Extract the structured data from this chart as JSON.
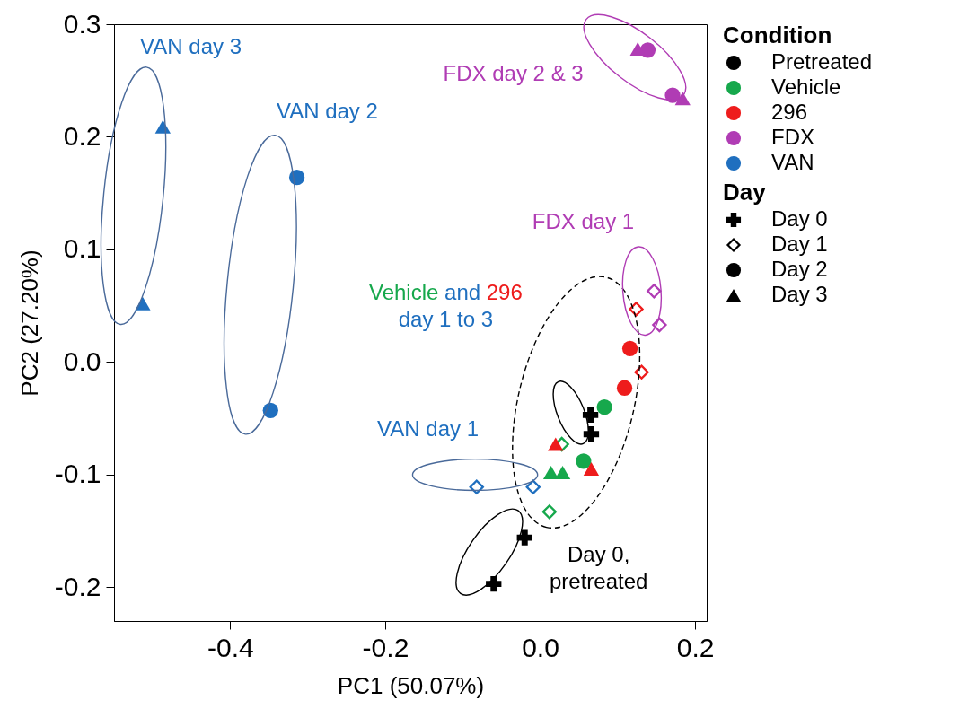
{
  "chart_data": {
    "type": "scatter",
    "xlabel": "PC1 (50.07%)",
    "ylabel": "PC2 (27.20%)",
    "xlim": [
      -0.55,
      0.215
    ],
    "ylim": [
      -0.23,
      0.3
    ],
    "xticks": [
      -0.4,
      -0.2,
      {
        "value": 0,
        "label": "0.0"
      },
      0.2
    ],
    "yticks": [
      -0.2,
      -0.1,
      {
        "value": 0,
        "label": "0.0"
      },
      0.1,
      0.2,
      0.3
    ],
    "grid": false,
    "legend": "right",
    "legend_title": "Condition",
    "series": [
      {
        "name": "Pretreated",
        "color": "#000000",
        "marker": "cross",
        "x": [
          -0.02,
          -0.06,
          0.065,
          0.066
        ],
        "values": [
          -0.156,
          -0.197,
          -0.047,
          -0.064
        ]
      },
      {
        "color": "#16a84c",
        "marker": "diamond",
        "x": [
          0.012,
          0.028
        ],
        "values": [
          -0.133,
          -0.073
        ]
      },
      {
        "name": "Vehicle",
        "color": "#16a84c",
        "marker": "circle",
        "x": [
          0.056,
          0.083
        ],
        "values": [
          -0.088,
          -0.04
        ]
      },
      {
        "color": "#16a84c",
        "marker": "triangle",
        "x": [
          0.014,
          0.029
        ],
        "values": [
          -0.098,
          -0.098
        ]
      },
      {
        "color": "#ee1c1c",
        "marker": "diamond",
        "x": [
          0.131,
          0.124
        ],
        "values": [
          -0.009,
          0.047
        ]
      },
      {
        "name": "296",
        "color": "#ee1c1c",
        "marker": "circle",
        "x": [
          0.109,
          0.116
        ],
        "values": [
          -0.023,
          0.012
        ]
      },
      {
        "color": "#ee1c1c",
        "marker": "triangle",
        "x": [
          0.02,
          0.066
        ],
        "values": [
          -0.073,
          -0.095
        ]
      },
      {
        "color": "#b03cb4",
        "marker": "diamond",
        "x": [
          0.147,
          0.154
        ],
        "values": [
          0.063,
          0.033
        ]
      },
      {
        "name": "FDX",
        "color": "#b03cb4",
        "marker": "circle",
        "x": [
          0.139,
          0.171
        ],
        "values": [
          0.277,
          0.237
        ]
      },
      {
        "color": "#b03cb4",
        "marker": "triangle",
        "x": [
          0.126,
          0.184
        ],
        "values": [
          0.278,
          0.234
        ]
      },
      {
        "color": "#1f6fbf",
        "marker": "diamond",
        "x": [
          -0.082,
          -0.009
        ],
        "values": [
          -0.111,
          -0.111
        ]
      },
      {
        "name": "VAN",
        "color": "#1f6fbf",
        "marker": "circle",
        "x": [
          -0.314,
          -0.348
        ],
        "values": [
          0.164,
          -0.043
        ]
      },
      {
        "color": "#1f6fbf",
        "marker": "triangle",
        "x": [
          -0.487,
          -0.513
        ],
        "values": [
          0.209,
          0.052
        ]
      }
    ],
    "annotations": [
      "VAN day 3",
      "VAN day 2",
      "FDX day 2 & 3",
      "FDX day 1",
      "Vehicle and 296\nday 1 to 3",
      "VAN day 1",
      "Day 0,\npretreated",
      "Day",
      "Day 0",
      "Day 1",
      "Day 2",
      "Day 3"
    ]
  }
}
